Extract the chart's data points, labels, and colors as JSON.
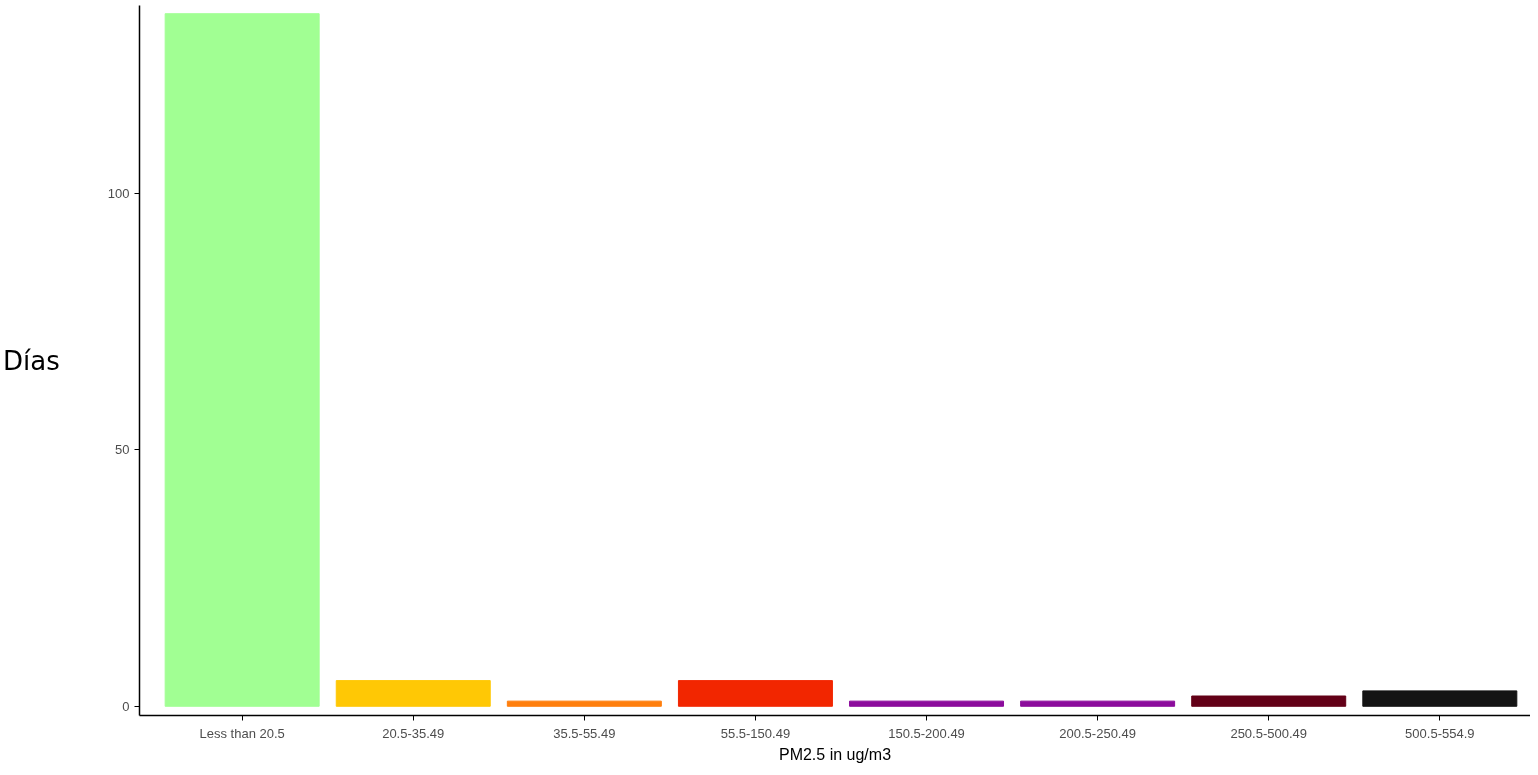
{
  "chart_data": {
    "type": "bar",
    "xlabel": "PM2.5 in ug/m3",
    "ylabel": "Días",
    "categories": [
      "Less than 20.5",
      "20.5-35.49",
      "35.5-55.49",
      "55.5-150.49",
      "150.5-200.49",
      "200.5-250.49",
      "250.5-500.49",
      "500.5-554.9"
    ],
    "values": [
      135,
      5,
      1,
      5,
      1,
      1,
      2,
      3
    ],
    "colors": [
      "#a1ff93",
      "#ffc805",
      "#ff7f0e",
      "#f22600",
      "#8c0c9c",
      "#8c0c9c",
      "#630017",
      "#141414"
    ],
    "ylim": [
      -1.8,
      136.6
    ],
    "yticks": [
      0,
      50,
      100
    ],
    "grid": false
  }
}
